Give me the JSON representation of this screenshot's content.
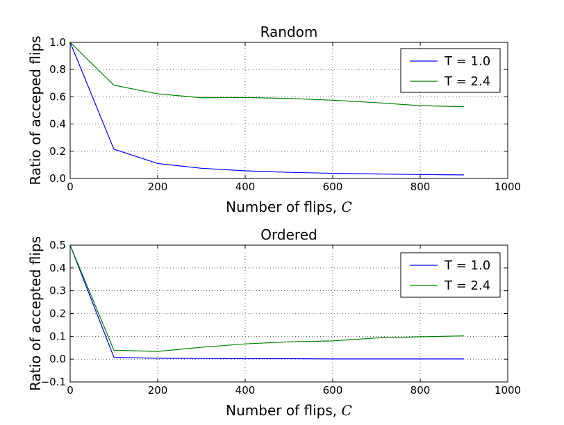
{
  "chart_data": [
    {
      "type": "line",
      "title": "Random",
      "xlabel": "Number of flips, ",
      "xlabel_math": "C",
      "ylabel": "Ratio of acceped flips",
      "xlim": [
        0,
        1000
      ],
      "ylim": [
        0.0,
        1.0
      ],
      "xticks": [
        0,
        200,
        400,
        600,
        800,
        1000
      ],
      "yticks": [
        0.0,
        0.2,
        0.4,
        0.6,
        0.8,
        1.0
      ],
      "xtick_labels": [
        "0",
        "200",
        "400",
        "600",
        "800",
        "1000"
      ],
      "ytick_labels": [
        "0.0",
        "0.2",
        "0.4",
        "0.6",
        "0.8",
        "1.0"
      ],
      "grid": true,
      "legend_position": "top-right",
      "x": [
        0,
        100,
        200,
        300,
        400,
        500,
        600,
        700,
        800,
        900
      ],
      "series": [
        {
          "name": "T = 1.0",
          "color": "#0000ff",
          "values": [
            1.0,
            0.215,
            0.11,
            0.075,
            0.056,
            0.045,
            0.038,
            0.033,
            0.029,
            0.026
          ]
        },
        {
          "name": "T = 2.4",
          "color": "#008000",
          "values": [
            1.0,
            0.685,
            0.622,
            0.593,
            0.595,
            0.588,
            0.575,
            0.557,
            0.535,
            0.527
          ]
        }
      ]
    },
    {
      "type": "line",
      "title": "Ordered",
      "xlabel": "Number of flips, ",
      "xlabel_math": "C",
      "ylabel": "Ratio of accepted flips",
      "xlim": [
        0,
        1000
      ],
      "ylim": [
        -0.1,
        0.5
      ],
      "xticks": [
        0,
        200,
        400,
        600,
        800,
        1000
      ],
      "yticks": [
        -0.1,
        0.0,
        0.1,
        0.2,
        0.3,
        0.4,
        0.5
      ],
      "xtick_labels": [
        "0",
        "200",
        "400",
        "600",
        "800",
        "1000"
      ],
      "ytick_labels": [
        "−0.1",
        "0.0",
        "0.1",
        "0.2",
        "0.3",
        "0.4",
        "0.5"
      ],
      "grid": true,
      "legend_position": "top-right",
      "x": [
        0,
        100,
        200,
        300,
        400,
        500,
        600,
        700,
        800,
        900
      ],
      "series": [
        {
          "name": "T = 1.0",
          "color": "#0000ff",
          "values": [
            0.5,
            0.008,
            0.004,
            0.003,
            0.002,
            0.002,
            0.001,
            0.001,
            0.001,
            0.001
          ]
        },
        {
          "name": "T = 2.4",
          "color": "#008000",
          "values": [
            0.5,
            0.039,
            0.034,
            0.052,
            0.067,
            0.076,
            0.08,
            0.093,
            0.098,
            0.102
          ]
        }
      ]
    }
  ]
}
